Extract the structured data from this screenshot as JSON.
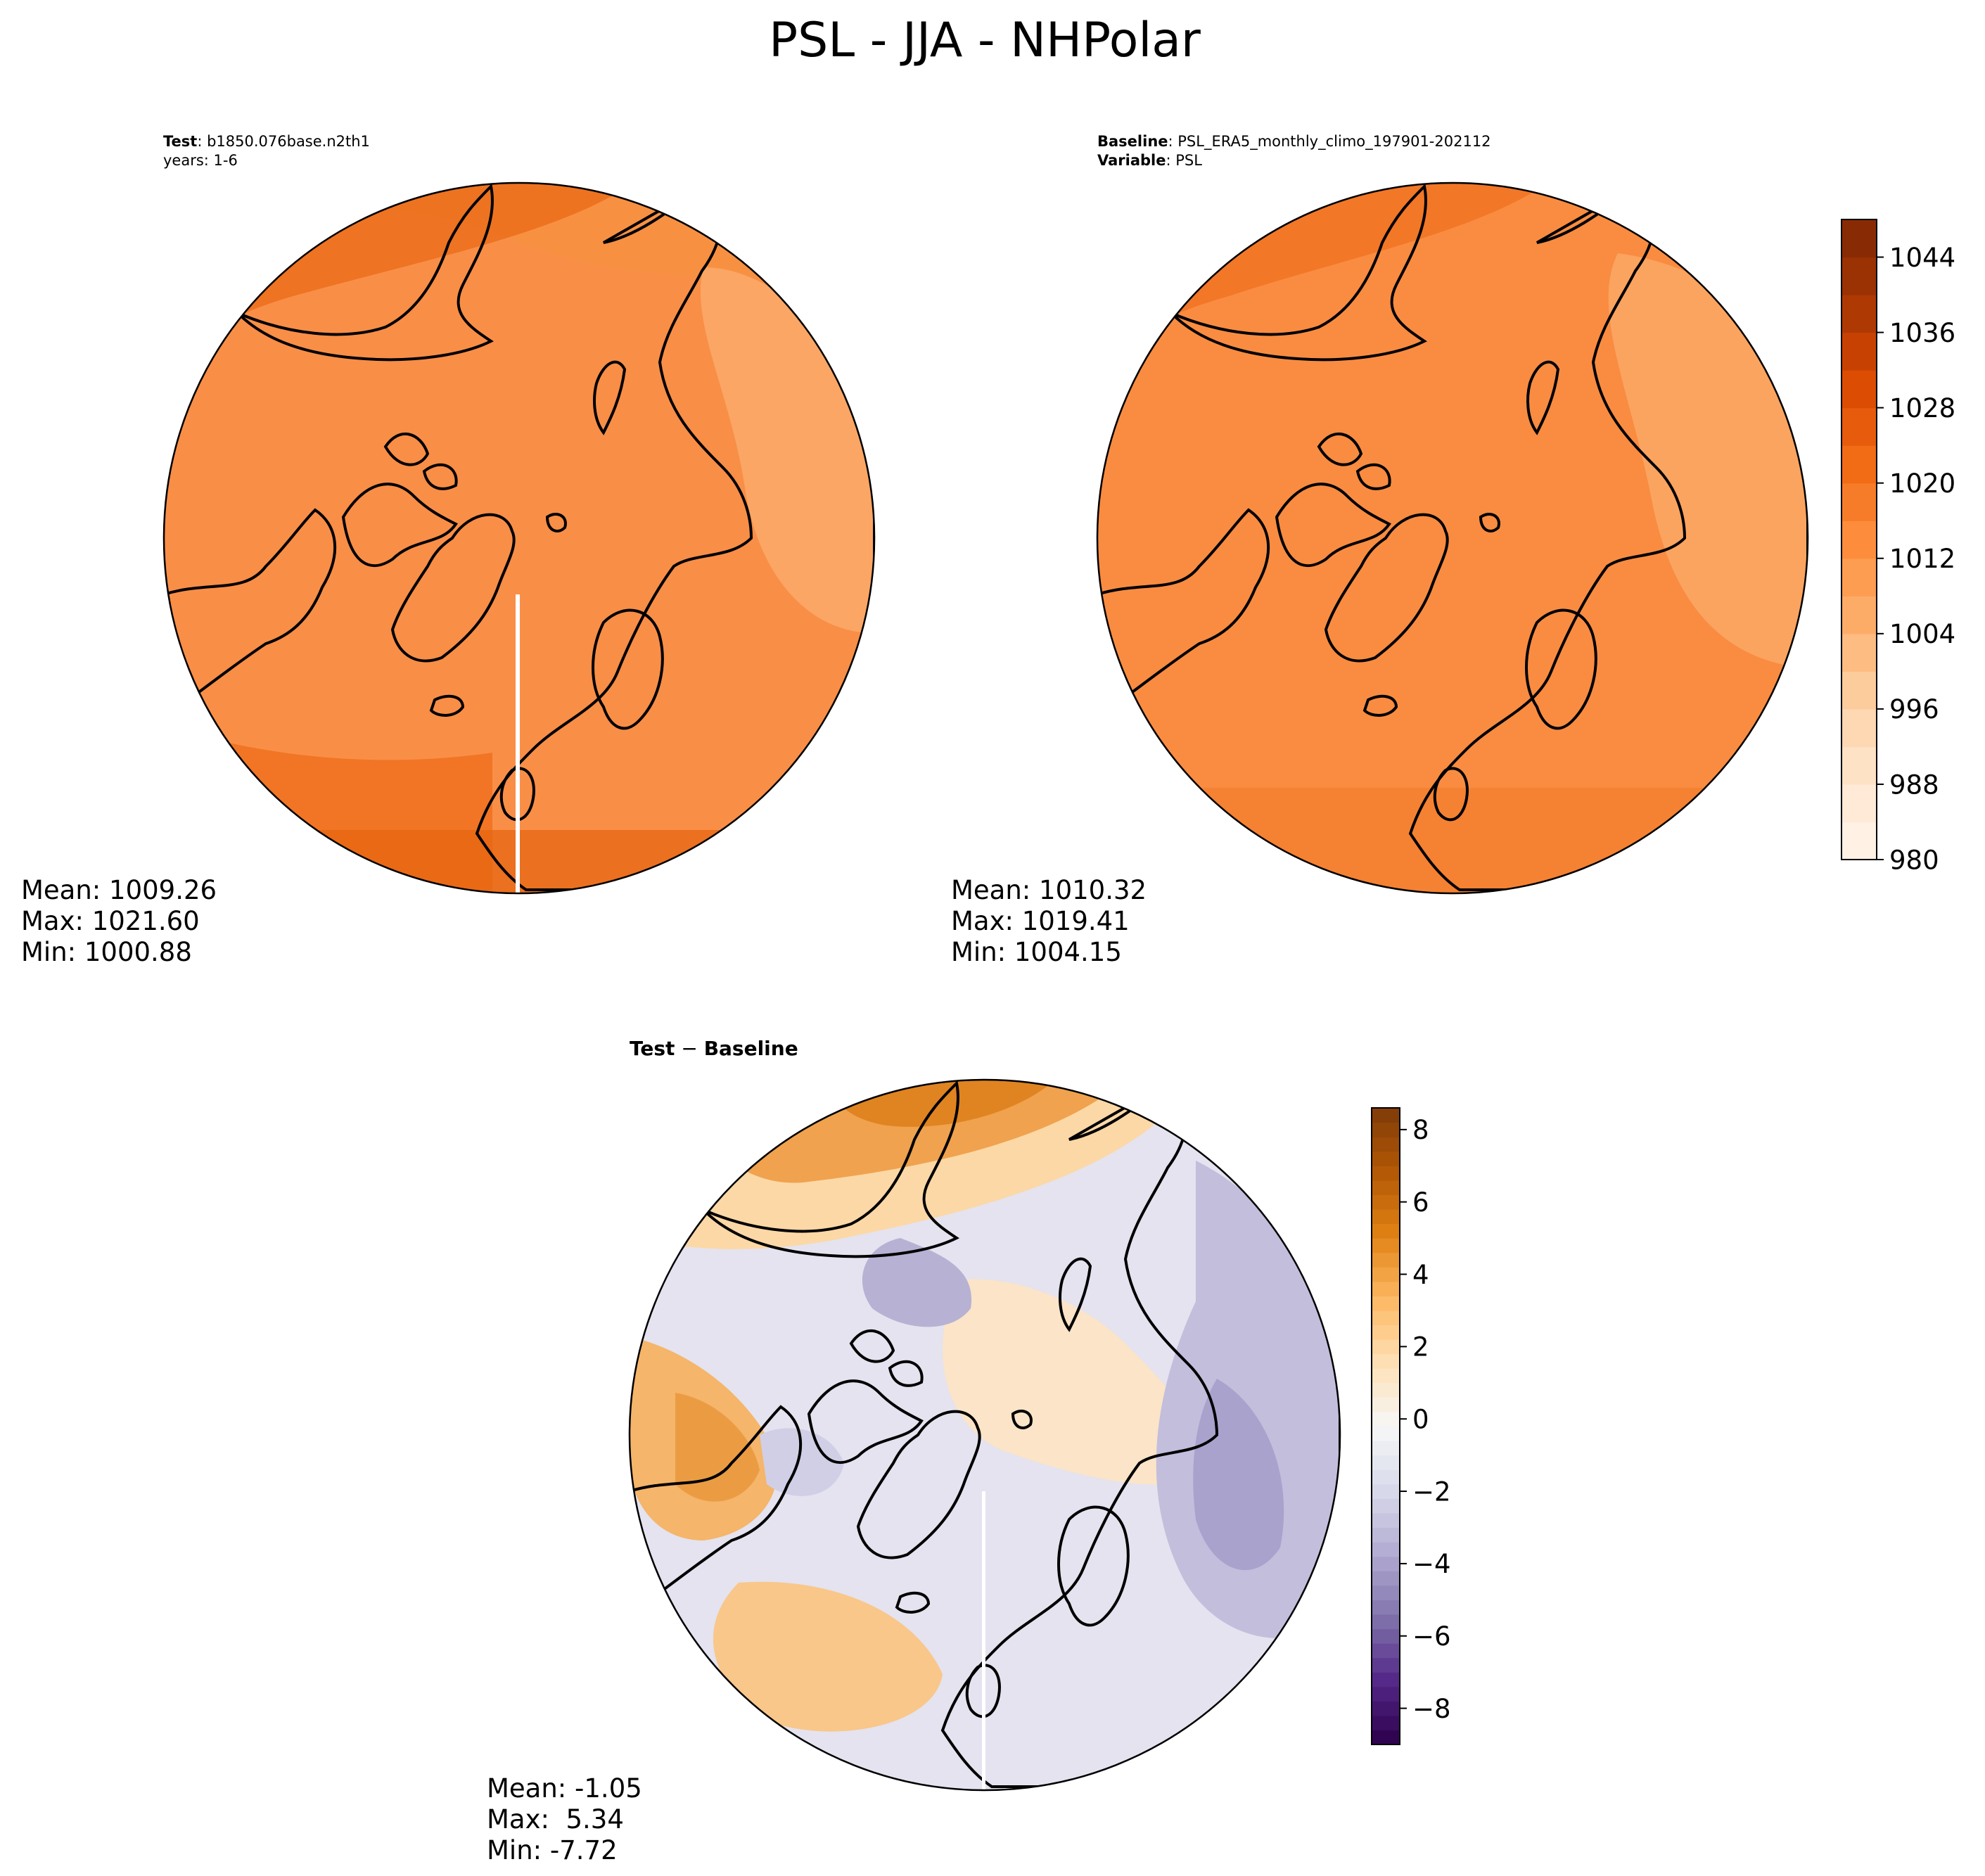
{
  "figure": {
    "title": "PSL - JJA - NHPolar"
  },
  "panels": {
    "test": {
      "header_bold": "Test",
      "header_rest": ": b1850.076base.n2th1",
      "header_line2": "years: 1-6",
      "stats": [
        "Mean: 1009.26",
        "Max: 1021.60",
        "Min: 1000.88"
      ],
      "palette": "Oranges",
      "description": "Northern hemisphere polar stereographic sea-level pressure, mostly 1004-1020 range"
    },
    "baseline": {
      "header_bold_1": "Baseline",
      "header_rest_1": ": PSL_ERA5_monthly_climo_197901-202112",
      "header_bold_2": "Variable",
      "header_rest_2": ": PSL",
      "stats": [
        "Mean: 1010.32",
        "Max: 1019.41",
        "Min: 1004.15"
      ],
      "palette": "Oranges"
    },
    "diff": {
      "header_bold_1": "Test",
      "header_sep": " − ",
      "header_bold_2": "Baseline",
      "stats": [
        "Mean: -1.05",
        "Max:  5.34",
        "Min: -7.72"
      ],
      "palette": "PuOr_r"
    }
  },
  "chart_data": [
    {
      "type": "heatmap",
      "name": "Test",
      "projection": "north-polar-stereographic",
      "colorbar": "shared-with-baseline",
      "stats": {
        "mean": 1009.26,
        "max": 1021.6,
        "min": 1000.88
      }
    },
    {
      "type": "heatmap",
      "name": "Baseline",
      "projection": "north-polar-stereographic",
      "colorbar": {
        "range": [
          980,
          1048
        ],
        "ticks": [
          980,
          988,
          996,
          1004,
          1012,
          1020,
          1028,
          1036,
          1044
        ],
        "tick_labels": [
          "980",
          "988",
          "996",
          "1004",
          "1012",
          "1020",
          "1028",
          "1036",
          "1044"
        ],
        "colors": [
          "#fff5eb",
          "#fee6ce",
          "#fdd0a2",
          "#fdae6b",
          "#fd8d3c",
          "#f16913",
          "#d94801",
          "#a63603",
          "#7f2704"
        ]
      },
      "stats": {
        "mean": 1010.32,
        "max": 1019.41,
        "min": 1004.15
      }
    },
    {
      "type": "heatmap",
      "name": "Test - Baseline",
      "projection": "north-polar-stereographic",
      "colorbar": {
        "range": [
          -9,
          8.6
        ],
        "ticks": [
          -8,
          -6,
          -4,
          -2,
          0,
          2,
          4,
          6,
          8
        ],
        "tick_labels": [
          "−8",
          "−6",
          "−4",
          "−2",
          "0",
          "2",
          "4",
          "6",
          "8"
        ],
        "colors": [
          "#2d004b",
          "#542788",
          "#8073ac",
          "#b2abd2",
          "#d8daeb",
          "#f7f7f7",
          "#fee0b6",
          "#fdb863",
          "#e08214",
          "#b35806",
          "#7f3b08"
        ]
      },
      "stats": {
        "mean": -1.05,
        "max": 5.34,
        "min": -7.72
      }
    }
  ]
}
